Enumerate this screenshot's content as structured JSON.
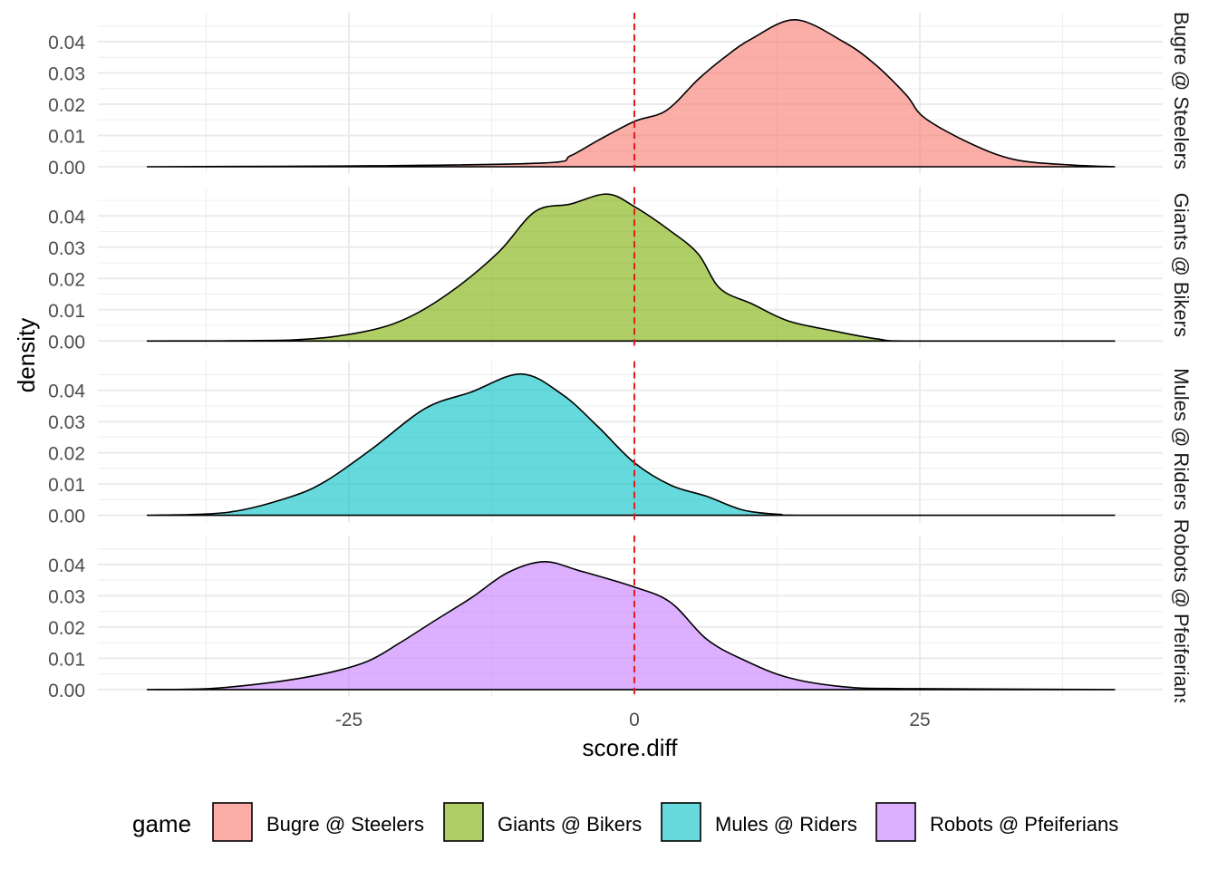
{
  "chart_data": {
    "type": "area",
    "subtype": "faceted density",
    "xlabel": "score.diff",
    "ylabel": "density",
    "xlim": [
      -45,
      45
    ],
    "ylim": [
      0,
      0.048
    ],
    "x_ticks": [
      -25,
      0,
      25
    ],
    "x_tick_labels": [
      "-25",
      "0",
      "25"
    ],
    "y_ticks": [
      0,
      0.01,
      0.02,
      0.03,
      0.04
    ],
    "y_tick_labels": [
      "0.00",
      "0.01",
      "0.02",
      "0.03",
      "0.04"
    ],
    "grid": true,
    "reference_line": {
      "x": 0,
      "color": "#E41A1C",
      "style": "dashed"
    },
    "legend": {
      "title": "game",
      "placement": "bottom"
    },
    "series": [
      {
        "name": "Bugre @ Steelers",
        "color": "#F8766D",
        "x": [
          -42.7,
          -23,
          -7.9,
          -5.6,
          -3.2,
          0,
          2.8,
          5.6,
          7.9,
          10.3,
          14.1,
          18.3,
          21,
          23.8,
          25.4,
          29.4,
          33.3,
          38.1,
          42.1
        ],
        "y": [
          0,
          0.0003,
          0.0012,
          0.0035,
          0.0084,
          0.0145,
          0.018,
          0.028,
          0.035,
          0.041,
          0.047,
          0.04,
          0.033,
          0.023,
          0.0157,
          0.0075,
          0.0023,
          0.0006,
          0
        ]
      },
      {
        "name": "Giants @ Bikers",
        "color": "#7CAE00",
        "x": [
          -42.7,
          -30.2,
          -23.8,
          -19.8,
          -15.9,
          -11.9,
          -8.7,
          -5.6,
          -2.4,
          0,
          3.2,
          5.6,
          7.5,
          10.3,
          13.5,
          17.5,
          21.4,
          24.6,
          42.1
        ],
        "y": [
          0,
          0.0003,
          0.0029,
          0.0075,
          0.0162,
          0.0284,
          0.0414,
          0.0438,
          0.047,
          0.043,
          0.0351,
          0.0278,
          0.0168,
          0.0119,
          0.0064,
          0.0032,
          0.0006,
          0,
          0
        ]
      },
      {
        "name": "Mules @ Riders",
        "color": "#00BFC4",
        "x": [
          -42.7,
          -35.7,
          -30.2,
          -27,
          -23,
          -18.3,
          -14.3,
          -9.9,
          -6.3,
          -3.2,
          0,
          3.2,
          6.3,
          9.5,
          12.7,
          15.9,
          42.1
        ],
        "y": [
          0,
          0.0009,
          0.0058,
          0.011,
          0.0212,
          0.0342,
          0.0394,
          0.0452,
          0.0386,
          0.0284,
          0.0168,
          0.0096,
          0.0061,
          0.0017,
          0.0003,
          0,
          0
        ]
      },
      {
        "name": "Robots @ Pfeiferians",
        "color": "#C77CFF",
        "x": [
          -42.7,
          -37.3,
          -31.7,
          -27,
          -23.4,
          -20.6,
          -17.5,
          -14.3,
          -11.1,
          -7.9,
          -4.8,
          0,
          3.2,
          6.3,
          9.5,
          13.5,
          18.3,
          23.8,
          42.1
        ],
        "y": [
          0,
          0.0003,
          0.0023,
          0.0052,
          0.009,
          0.0148,
          0.022,
          0.0293,
          0.0374,
          0.0409,
          0.038,
          0.0328,
          0.0278,
          0.0162,
          0.0096,
          0.0038,
          0.0009,
          0.0003,
          0
        ]
      }
    ]
  }
}
